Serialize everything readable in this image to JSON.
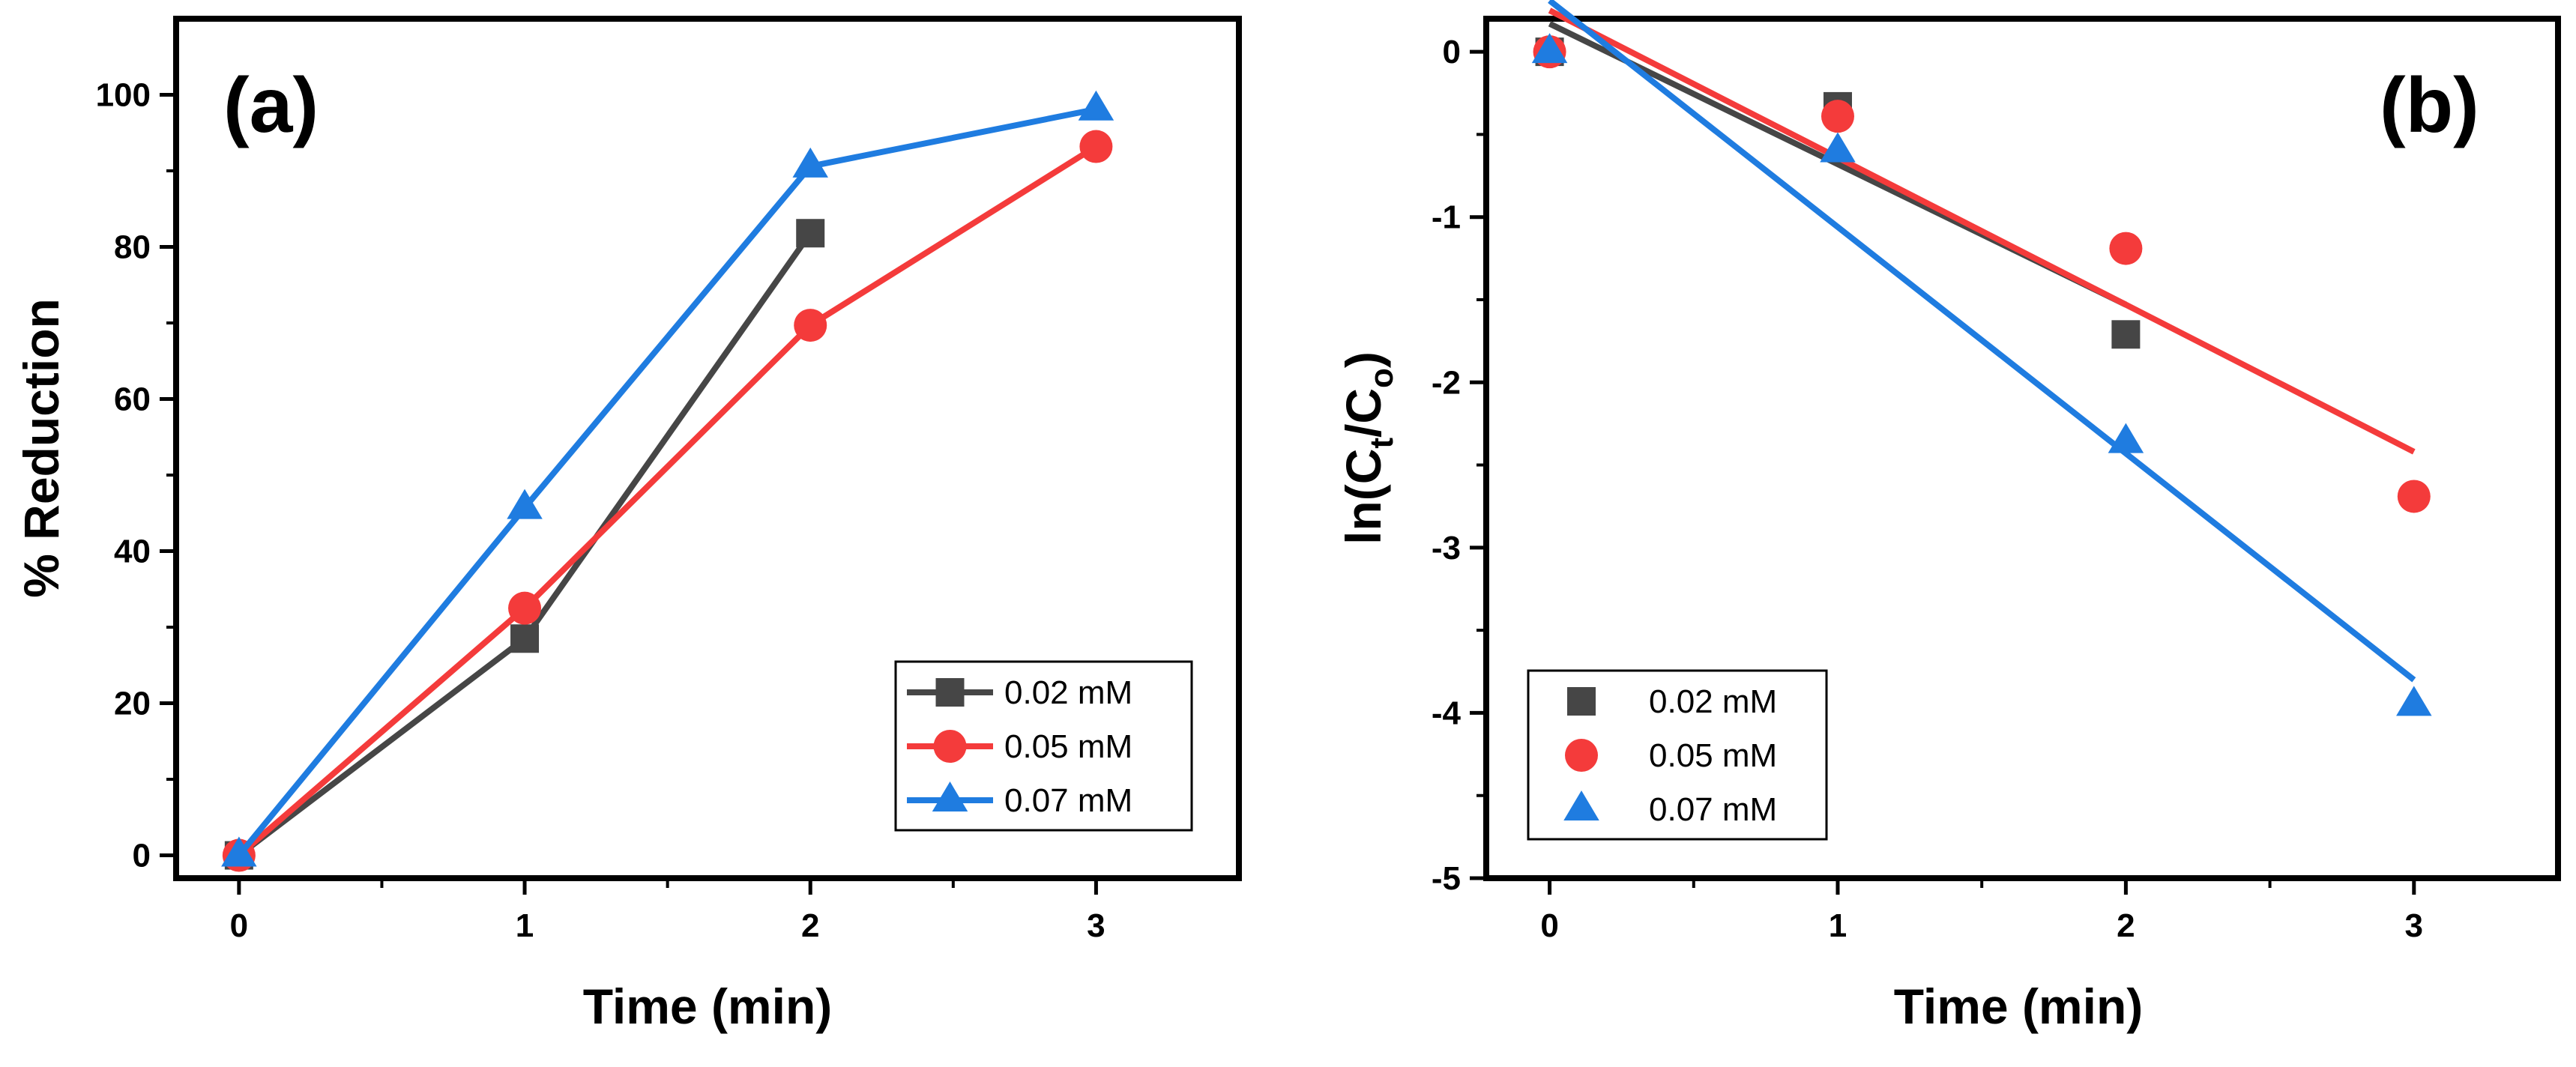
{
  "figure": {
    "panels": [
      "a",
      "b"
    ]
  },
  "chart_data": [
    {
      "id": "a",
      "type": "line",
      "panel_label": "(a)",
      "title": "",
      "xlabel": "Time (min)",
      "ylabel": "% Reduction",
      "xlim": [
        -0.22,
        3.5
      ],
      "ylim": [
        -3,
        110
      ],
      "xticks": [
        0,
        1,
        2,
        3
      ],
      "yticks": [
        0,
        20,
        40,
        60,
        80,
        100
      ],
      "legend_position": "bottom-right",
      "grid": false,
      "series": [
        {
          "name": "0.02 mM",
          "color": "#464646",
          "marker": "square",
          "line": true,
          "fit": false,
          "x": [
            0,
            1,
            2
          ],
          "y": [
            0,
            28.5,
            81.8
          ]
        },
        {
          "name": "0.05 mM",
          "color": "#f43b3b",
          "marker": "circle",
          "line": true,
          "fit": false,
          "x": [
            0,
            1,
            2,
            3
          ],
          "y": [
            0,
            32.5,
            69.7,
            93.2
          ]
        },
        {
          "name": "0.07 mM",
          "color": "#1f7ce0",
          "marker": "triangle",
          "line": true,
          "fit": false,
          "x": [
            0,
            1,
            2,
            3
          ],
          "y": [
            0,
            45.7,
            90.6,
            98.1
          ]
        }
      ]
    },
    {
      "id": "b",
      "type": "scatter",
      "panel_label": "(b)",
      "title": "",
      "xlabel": "Time (min)",
      "ylabel_main": "ln(C",
      "ylabel_sub1": "t",
      "ylabel_mid": "/C",
      "ylabel_sub2": "o",
      "ylabel_end": ")",
      "xlim": [
        -0.22,
        3.5
      ],
      "ylim": [
        -5,
        0.2
      ],
      "xticks": [
        0,
        1,
        2,
        3
      ],
      "yticks": [
        0,
        -1,
        -2,
        -3,
        -4,
        -5
      ],
      "legend_position": "bottom-left",
      "grid": false,
      "series": [
        {
          "name": "0.02 mM",
          "color": "#464646",
          "marker": "square",
          "line": false,
          "x": [
            0,
            1,
            2
          ],
          "y": [
            0,
            -0.33,
            -1.71
          ],
          "fit": {
            "x": [
              0,
              2
            ],
            "y": [
              0.17,
              -1.53
            ]
          }
        },
        {
          "name": "0.05 mM",
          "color": "#f43b3b",
          "marker": "circle",
          "line": false,
          "x": [
            0,
            1,
            2,
            3
          ],
          "y": [
            0,
            -0.39,
            -1.19,
            -2.69
          ],
          "fit": {
            "x": [
              0,
              3
            ],
            "y": [
              0.25,
              -2.42
            ]
          }
        },
        {
          "name": "0.07 mM",
          "color": "#1f7ce0",
          "marker": "triangle",
          "line": false,
          "x": [
            0,
            1,
            2,
            3
          ],
          "y": [
            0,
            -0.6,
            -2.36,
            -3.95
          ],
          "fit": {
            "x": [
              0,
              3
            ],
            "y": [
              0.31,
              -3.8
            ]
          }
        }
      ]
    }
  ]
}
